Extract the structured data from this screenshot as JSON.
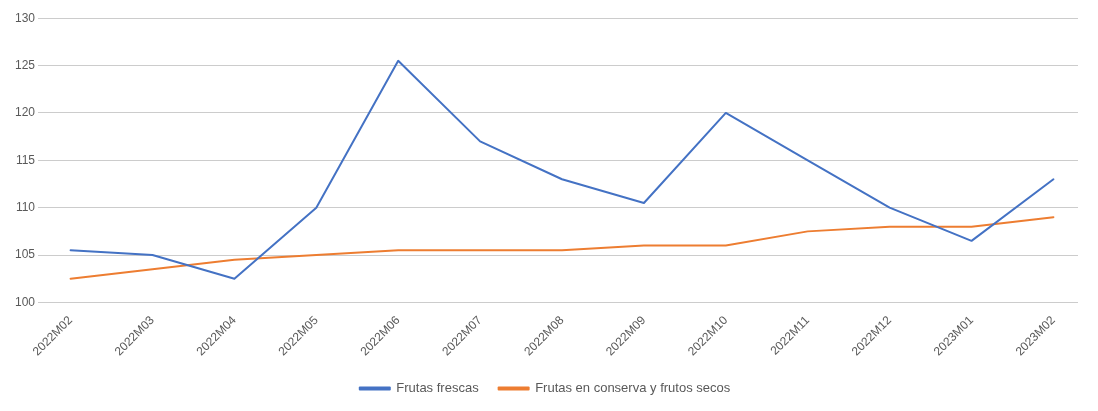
{
  "chart_data": {
    "type": "line",
    "categories": [
      "2022M02",
      "2022M03",
      "2022M04",
      "2022M05",
      "2022M06",
      "2022M07",
      "2022M08",
      "2022M09",
      "2022M10",
      "2022M11",
      "2022M12",
      "2023M01",
      "2023M02"
    ],
    "series": [
      {
        "name": "Frutas frescas",
        "color": "#4472C4",
        "values": [
          105.5,
          105.0,
          102.5,
          110.0,
          125.5,
          117.0,
          113.0,
          110.5,
          120.0,
          115.0,
          110.0,
          106.5,
          113.0
        ]
      },
      {
        "name": "Frutas en conserva y frutos secos",
        "color": "#ED7D31",
        "values": [
          102.5,
          103.5,
          104.5,
          105.0,
          105.5,
          105.5,
          105.5,
          106.0,
          106.0,
          107.5,
          108.0,
          108.0,
          109.0
        ]
      }
    ],
    "ylim": [
      100,
      130
    ],
    "yticks": [
      100,
      105,
      110,
      115,
      120,
      125,
      130
    ],
    "grid": "y",
    "legend": "bottom"
  }
}
